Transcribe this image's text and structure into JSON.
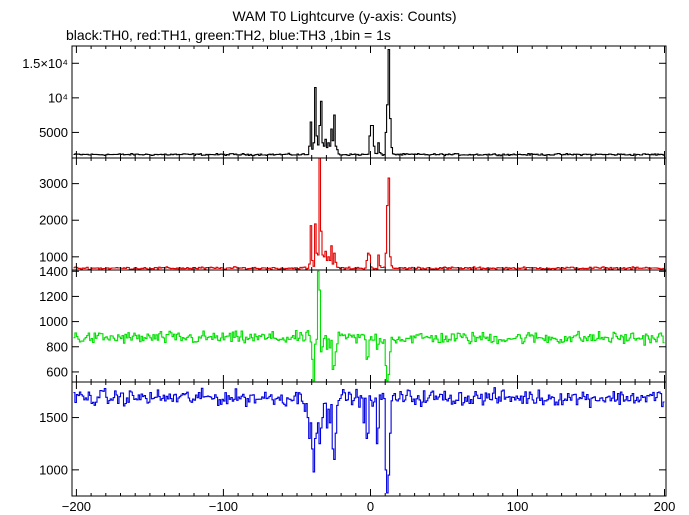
{
  "chart_data": {
    "type": "line",
    "title": "WAM T0 Lightcurve (y-axis: Counts)",
    "subtitle": "black:TH0, red:TH1, green:TH2, blue:TH3 ,1bin = 1s",
    "xlabel": "",
    "ylabel": "",
    "xlim": [
      -203,
      201
    ],
    "x_ticks": [
      -200,
      -100,
      0,
      100,
      200
    ],
    "x_tick_labels": [
      "−200",
      "−100",
      "0",
      "100",
      "200"
    ],
    "grid": false,
    "panels": [
      {
        "name": "TH0",
        "color": "#000000",
        "ylim": [
          1300,
          17500
        ],
        "yticks": [
          5000,
          10000,
          15000
        ],
        "ytick_labels": [
          "5000",
          "10⁴",
          "1.5×10⁴"
        ],
        "baseline": 1800,
        "noise": 80,
        "features": [
          {
            "x": -42,
            "value": 3000
          },
          {
            "x": -41,
            "value": 6500
          },
          {
            "x": -39,
            "value": 3500
          },
          {
            "x": -38,
            "value": 11500
          },
          {
            "x": -37,
            "value": 4500
          },
          {
            "x": -36,
            "value": 3200
          },
          {
            "x": -35,
            "value": 6000
          },
          {
            "x": -34,
            "value": 9500
          },
          {
            "x": -33,
            "value": 3500
          },
          {
            "x": -32,
            "value": 3000
          },
          {
            "x": -31,
            "value": 4000
          },
          {
            "x": -30,
            "value": 2800
          },
          {
            "x": -29,
            "value": 3500
          },
          {
            "x": -28,
            "value": 3000
          },
          {
            "x": -27,
            "value": 5500
          },
          {
            "x": -26,
            "value": 3800
          },
          {
            "x": -25,
            "value": 7500
          },
          {
            "x": -24,
            "value": 3000
          },
          {
            "x": -23,
            "value": 2500
          },
          {
            "x": -1,
            "value": 4500
          },
          {
            "x": 0,
            "value": 6000
          },
          {
            "x": 1,
            "value": 6000
          },
          {
            "x": 2,
            "value": 3000
          },
          {
            "x": 5,
            "value": 3500
          },
          {
            "x": 10,
            "value": 5000
          },
          {
            "x": 11,
            "value": 9000
          },
          {
            "x": 12,
            "value": 17000
          },
          {
            "x": 13,
            "value": 7000
          },
          {
            "x": 14,
            "value": 2800
          }
        ]
      },
      {
        "name": "TH1",
        "color": "#e00000",
        "ylim": [
          640,
          3700
        ],
        "yticks": [
          1000,
          2000,
          3000
        ],
        "ytick_labels": [
          "1000",
          "2000",
          "3000"
        ],
        "baseline": 690,
        "noise": 20,
        "features": [
          {
            "x": -42,
            "value": 800
          },
          {
            "x": -41,
            "value": 1850
          },
          {
            "x": -40,
            "value": 900
          },
          {
            "x": -38,
            "value": 1900
          },
          {
            "x": -37,
            "value": 1100
          },
          {
            "x": -36,
            "value": 1050
          },
          {
            "x": -35,
            "value": 3700
          },
          {
            "x": -34,
            "value": 1700
          },
          {
            "x": -33,
            "value": 1050
          },
          {
            "x": -32,
            "value": 1000
          },
          {
            "x": -31,
            "value": 1150
          },
          {
            "x": -30,
            "value": 900
          },
          {
            "x": -29,
            "value": 1000
          },
          {
            "x": -28,
            "value": 900
          },
          {
            "x": -27,
            "value": 1300
          },
          {
            "x": -26,
            "value": 800
          },
          {
            "x": -25,
            "value": 1100
          },
          {
            "x": -24,
            "value": 850
          },
          {
            "x": -3,
            "value": 900
          },
          {
            "x": -2,
            "value": 1100
          },
          {
            "x": -1,
            "value": 1050
          },
          {
            "x": 5,
            "value": 1050
          },
          {
            "x": 10,
            "value": 1100
          },
          {
            "x": 11,
            "value": 2400
          },
          {
            "x": 12,
            "value": 3150
          },
          {
            "x": 13,
            "value": 1000
          }
        ]
      },
      {
        "name": "TH2",
        "color": "#00e000",
        "ylim": [
          520,
          1410
        ],
        "yticks": [
          600,
          800,
          1000,
          1200,
          1400
        ],
        "ytick_labels": [
          "600",
          "800",
          "1000",
          "1200",
          "1400"
        ],
        "baseline": 870,
        "noise": 30,
        "features": [
          {
            "x": -40,
            "value": 700
          },
          {
            "x": -39,
            "value": 530
          },
          {
            "x": -38,
            "value": 820
          },
          {
            "x": -36,
            "value": 1400
          },
          {
            "x": -35,
            "value": 1250
          },
          {
            "x": -34,
            "value": 760
          },
          {
            "x": -33,
            "value": 800
          },
          {
            "x": -30,
            "value": 780
          },
          {
            "x": -28,
            "value": 790
          },
          {
            "x": -26,
            "value": 620
          },
          {
            "x": -25,
            "value": 650
          },
          {
            "x": -24,
            "value": 760
          },
          {
            "x": -3,
            "value": 700
          },
          {
            "x": -2,
            "value": 720
          },
          {
            "x": 4,
            "value": 780
          },
          {
            "x": 10,
            "value": 650
          },
          {
            "x": 11,
            "value": 530
          },
          {
            "x": 12,
            "value": 580
          },
          {
            "x": 13,
            "value": 760
          }
        ]
      },
      {
        "name": "TH3",
        "color": "#0000e0",
        "ylim": [
          750,
          1840
        ],
        "yticks": [
          1000,
          1500
        ],
        "ytick_labels": [
          "1000",
          "1500"
        ],
        "baseline": 1690,
        "noise": 45,
        "features": [
          {
            "x": -45,
            "value": 1560
          },
          {
            "x": -43,
            "value": 1500
          },
          {
            "x": -42,
            "value": 1300
          },
          {
            "x": -41,
            "value": 1450
          },
          {
            "x": -40,
            "value": 1200
          },
          {
            "x": -39,
            "value": 980
          },
          {
            "x": -38,
            "value": 1300
          },
          {
            "x": -37,
            "value": 1350
          },
          {
            "x": -36,
            "value": 1450
          },
          {
            "x": -35,
            "value": 1250
          },
          {
            "x": -34,
            "value": 1400
          },
          {
            "x": -33,
            "value": 1500
          },
          {
            "x": -30,
            "value": 1400
          },
          {
            "x": -28,
            "value": 1450
          },
          {
            "x": -26,
            "value": 1200
          },
          {
            "x": -25,
            "value": 1100
          },
          {
            "x": -24,
            "value": 1350
          },
          {
            "x": -5,
            "value": 1450
          },
          {
            "x": -3,
            "value": 1300
          },
          {
            "x": -2,
            "value": 1350
          },
          {
            "x": 4,
            "value": 1250
          },
          {
            "x": 5,
            "value": 1400
          },
          {
            "x": 10,
            "value": 1000
          },
          {
            "x": 11,
            "value": 780
          },
          {
            "x": 12,
            "value": 950
          },
          {
            "x": 13,
            "value": 1350
          }
        ]
      }
    ]
  }
}
